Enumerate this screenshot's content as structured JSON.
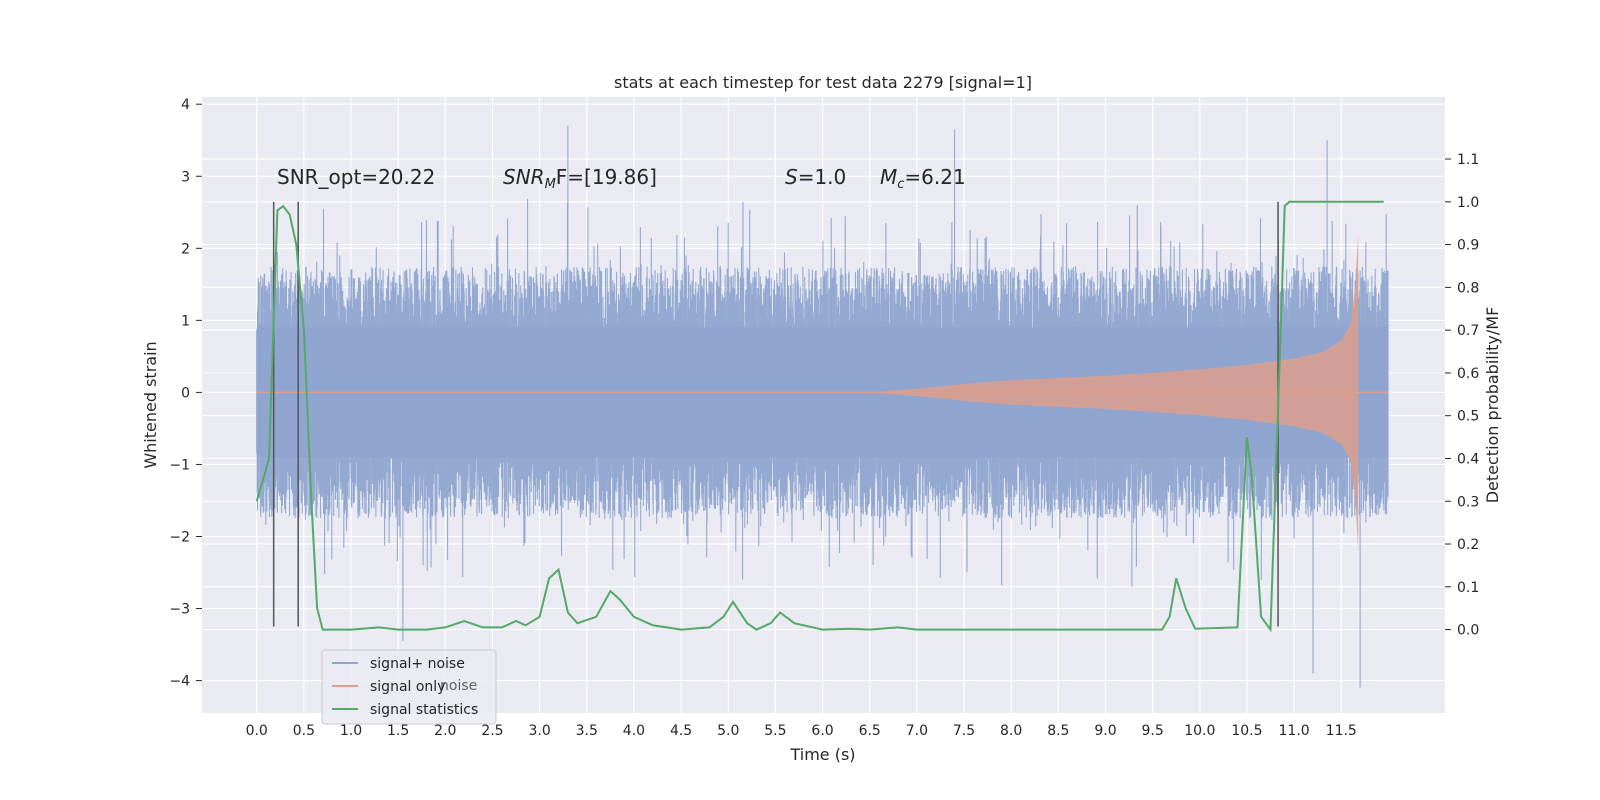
{
  "chart_data": {
    "type": "line",
    "title": "stats at each timestep for test data 2279 [signal=1]",
    "xlabel": "Time (s)",
    "ylabel_left": "Whitened strain",
    "ylabel_right": "Detection probability/MF",
    "xlim": [
      -0.58,
      12.6
    ],
    "ylim_left": [
      -4.45,
      4.1
    ],
    "ylim_right": [
      -0.195,
      1.245
    ],
    "x_ticks": [
      "0.0",
      "0.5",
      "1.0",
      "1.5",
      "2.0",
      "2.5",
      "3.0",
      "3.5",
      "4.0",
      "4.5",
      "5.0",
      "5.5",
      "6.0",
      "6.5",
      "7.0",
      "7.5",
      "8.0",
      "8.5",
      "9.0",
      "9.5",
      "10.0",
      "10.5",
      "11.0",
      "11.5"
    ],
    "y_ticks_left": [
      "4",
      "3",
      "2",
      "1",
      "0",
      "−1",
      "−2",
      "−3",
      "−4"
    ],
    "y_ticks_right": [
      "1.1",
      "1.0",
      "0.9",
      "0.8",
      "0.7",
      "0.6",
      "0.5",
      "0.4",
      "0.3",
      "0.2",
      "0.1",
      "0.0"
    ],
    "grid": true,
    "legend_position": "lower-left",
    "annotations": {
      "snr_opt": "SNR_opt=20.22",
      "snr_mf_main": "SNR",
      "snr_mf_sub": "M",
      "snr_mf_rest": "F=[19.86]",
      "s_sym": "S",
      "s_val": "=1.0",
      "mc_sym": "M",
      "mc_sub": "c",
      "mc_val": "=6.21"
    },
    "series": [
      {
        "name": "signal+ noise",
        "color": "#8fa5cf",
        "kind": "noise-band",
        "x_range": [
          0.0,
          12.0
        ],
        "typical_amplitude": 1.4,
        "extreme_peaks": [
          [
            3.3,
            3.7
          ],
          [
            7.4,
            3.65
          ],
          [
            11.35,
            3.5
          ],
          [
            1.55,
            -3.45
          ],
          [
            11.7,
            -4.1
          ],
          [
            11.2,
            -3.9
          ]
        ]
      },
      {
        "name": "signal only",
        "color": "#dd9e8b",
        "kind": "chirp-envelope",
        "x": [
          0.0,
          6.5,
          7.0,
          7.5,
          8.0,
          8.5,
          9.0,
          9.5,
          10.0,
          10.5,
          11.0,
          11.3,
          11.5,
          11.6,
          11.65,
          11.68
        ],
        "envelope": [
          0.0,
          0.0,
          0.05,
          0.12,
          0.17,
          0.2,
          0.23,
          0.27,
          0.32,
          0.38,
          0.47,
          0.56,
          0.72,
          0.95,
          1.5,
          2.2
        ]
      },
      {
        "name": "signal statistics",
        "color": "#55a868",
        "kind": "line",
        "axis": "right",
        "x": [
          0.0,
          0.08,
          0.13,
          0.22,
          0.28,
          0.35,
          0.42,
          0.5,
          0.58,
          0.64,
          0.7,
          0.8,
          1.0,
          1.3,
          1.5,
          1.8,
          2.0,
          2.2,
          2.4,
          2.6,
          2.75,
          2.85,
          3.0,
          3.1,
          3.2,
          3.3,
          3.4,
          3.6,
          3.75,
          3.85,
          4.0,
          4.2,
          4.5,
          4.8,
          4.95,
          5.05,
          5.2,
          5.3,
          5.45,
          5.55,
          5.7,
          6.0,
          6.3,
          6.5,
          6.8,
          7.0,
          9.6,
          9.68,
          9.75,
          9.85,
          9.95,
          10.4,
          10.5,
          10.55,
          10.65,
          10.75,
          10.85,
          10.9,
          10.95,
          11.0,
          11.1,
          11.5,
          11.95
        ],
        "y": [
          0.3,
          0.36,
          0.4,
          0.98,
          0.99,
          0.97,
          0.9,
          0.7,
          0.3,
          0.05,
          0.0,
          0.0,
          0.0,
          0.005,
          0.0,
          0.0,
          0.005,
          0.02,
          0.005,
          0.005,
          0.02,
          0.01,
          0.03,
          0.12,
          0.14,
          0.04,
          0.015,
          0.03,
          0.09,
          0.07,
          0.03,
          0.01,
          0.0,
          0.005,
          0.03,
          0.065,
          0.015,
          0.0,
          0.015,
          0.04,
          0.015,
          0.0,
          0.002,
          0.0,
          0.005,
          0.0,
          0.0,
          0.03,
          0.12,
          0.05,
          0.002,
          0.005,
          0.45,
          0.36,
          0.03,
          0.0,
          0.65,
          0.99,
          1.0,
          1.0,
          1.0,
          1.0,
          1.0
        ]
      }
    ],
    "vertical_markers": [
      {
        "x": 0.18,
        "y_bottom_left": -3.25,
        "y_top_right": 1.0
      },
      {
        "x": 0.44,
        "y_bottom_left": -3.25,
        "y_top_right": 1.0
      },
      {
        "x": 10.83,
        "y_bottom_left": -3.25,
        "y_top_right": 1.0
      }
    ],
    "legend_bleed_text": "noise"
  }
}
